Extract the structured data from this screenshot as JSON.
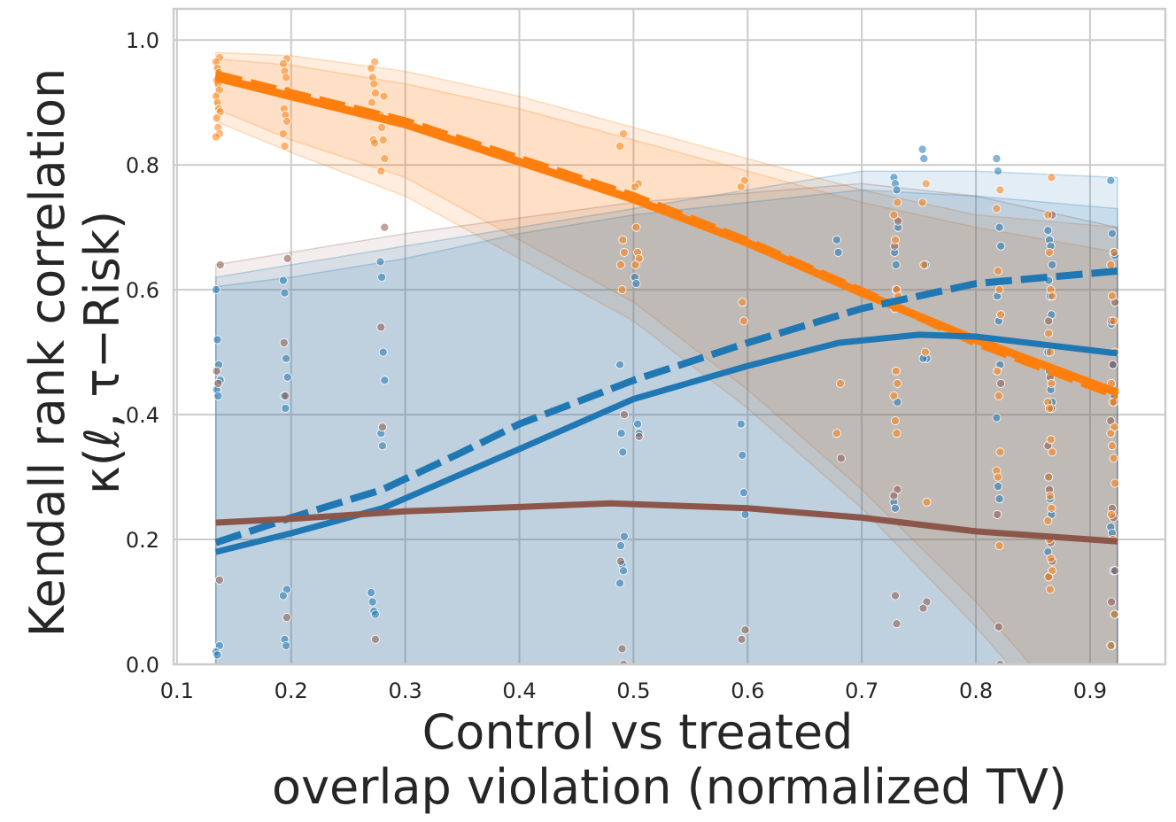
{
  "chart_data": {
    "type": "line",
    "title": "",
    "xlabel_lines": [
      "Control vs treated",
      "overlap violation (normalized TV)"
    ],
    "ylabel_lines": [
      "Kendall rank correlation",
      "κ(ℓ, τ−Risk)"
    ],
    "xlim": [
      0.097,
      0.966
    ],
    "ylim": [
      0.0,
      1.05
    ],
    "xticks": [
      0.1,
      0.2,
      0.3,
      0.4,
      0.5,
      0.6,
      0.7,
      0.8,
      0.9
    ],
    "yticks": [
      0.0,
      0.2,
      0.4,
      0.6,
      0.8,
      1.0
    ],
    "xtick_labels": [
      "0.1",
      "0.2",
      "0.3",
      "0.4",
      "0.5",
      "0.6",
      "0.7",
      "0.8",
      "0.9"
    ],
    "ytick_labels": [
      "0.0",
      "0.2",
      "0.4",
      "0.6",
      "0.8",
      "1.0"
    ],
    "grid": true,
    "colors": {
      "orange": "#ff7f0e",
      "blue": "#1f77b4",
      "brown": "#8c564b"
    },
    "bands": [
      {
        "color": "#ff7f0e",
        "opacity": 0.13,
        "x": [
          0.134,
          0.2,
          0.3,
          0.4,
          0.5,
          0.6,
          0.7,
          0.8,
          0.924
        ],
        "upper": [
          0.98,
          0.975,
          0.95,
          0.91,
          0.86,
          0.81,
          0.76,
          0.72,
          0.7
        ],
        "lower": [
          0.89,
          0.84,
          0.78,
          0.68,
          0.58,
          0.44,
          0.28,
          0.1,
          -0.16
        ]
      },
      {
        "color": "#ff7f0e",
        "opacity": 0.13,
        "x": [
          0.134,
          0.2,
          0.3,
          0.4,
          0.5,
          0.6,
          0.7,
          0.8,
          0.924
        ],
        "upper": [
          0.97,
          0.96,
          0.93,
          0.89,
          0.84,
          0.79,
          0.74,
          0.7,
          0.66
        ],
        "lower": [
          0.87,
          0.82,
          0.75,
          0.65,
          0.55,
          0.41,
          0.25,
          0.06,
          -0.2
        ]
      },
      {
        "color": "#8c564b",
        "opacity": 0.1,
        "x": [
          0.134,
          0.2,
          0.3,
          0.5,
          0.7,
          0.8,
          0.924
        ],
        "upper": [
          0.64,
          0.66,
          0.69,
          0.74,
          0.77,
          0.75,
          0.7
        ],
        "lower": [
          -0.2,
          -0.2,
          -0.2,
          -0.2,
          -0.2,
          -0.2,
          -0.2
        ]
      },
      {
        "color": "#1f77b4",
        "opacity": 0.13,
        "x": [
          0.134,
          0.2,
          0.3,
          0.4,
          0.5,
          0.6,
          0.7,
          0.8,
          0.924
        ],
        "upper": [
          0.62,
          0.64,
          0.67,
          0.7,
          0.73,
          0.76,
          0.79,
          0.79,
          0.78
        ],
        "lower": [
          -0.2,
          -0.2,
          -0.2,
          -0.2,
          -0.2,
          -0.2,
          -0.2,
          -0.2,
          -0.2
        ]
      },
      {
        "color": "#1f77b4",
        "opacity": 0.13,
        "x": [
          0.134,
          0.2,
          0.3,
          0.4,
          0.5,
          0.6,
          0.7,
          0.8,
          0.924
        ],
        "upper": [
          0.605,
          0.62,
          0.65,
          0.69,
          0.72,
          0.74,
          0.76,
          0.75,
          0.73
        ],
        "lower": [
          -0.2,
          -0.2,
          -0.2,
          -0.2,
          -0.2,
          -0.2,
          -0.2,
          -0.2,
          -0.2
        ]
      }
    ],
    "series": [
      {
        "color": "#ff7f0e",
        "style": "solid",
        "width": 9,
        "x": [
          0.134,
          0.2,
          0.3,
          0.4,
          0.5,
          0.6,
          0.7,
          0.8,
          0.924
        ],
        "y": [
          0.94,
          0.91,
          0.865,
          0.805,
          0.745,
          0.675,
          0.595,
          0.52,
          0.435
        ]
      },
      {
        "color": "#ff7f0e",
        "style": "dashed",
        "width": 9,
        "x": [
          0.134,
          0.2,
          0.3,
          0.4,
          0.5,
          0.6,
          0.7,
          0.8,
          0.924
        ],
        "y": [
          0.945,
          0.915,
          0.87,
          0.81,
          0.75,
          0.678,
          0.598,
          0.515,
          0.43
        ]
      },
      {
        "color": "#1f77b4",
        "style": "dashed",
        "width": 8,
        "x": [
          0.134,
          0.2,
          0.28,
          0.35,
          0.4,
          0.5,
          0.6,
          0.7,
          0.8,
          0.924
        ],
        "y": [
          0.195,
          0.235,
          0.28,
          0.34,
          0.385,
          0.455,
          0.515,
          0.57,
          0.61,
          0.63
        ]
      },
      {
        "color": "#1f77b4",
        "style": "solid",
        "width": 7,
        "x": [
          0.134,
          0.2,
          0.28,
          0.4,
          0.5,
          0.6,
          0.68,
          0.75,
          0.8,
          0.924
        ],
        "y": [
          0.18,
          0.21,
          0.25,
          0.345,
          0.425,
          0.478,
          0.515,
          0.528,
          0.525,
          0.498
        ]
      },
      {
        "color": "#8c564b",
        "style": "solid",
        "width": 7,
        "x": [
          0.134,
          0.2,
          0.3,
          0.4,
          0.48,
          0.6,
          0.7,
          0.8,
          0.924
        ],
        "y": [
          0.227,
          0.233,
          0.245,
          0.252,
          0.258,
          0.25,
          0.235,
          0.213,
          0.197
        ]
      }
    ],
    "scatter_columns": [
      {
        "x": 0.136,
        "orange": [
          0.972,
          0.965,
          0.955,
          0.948,
          0.94,
          0.935,
          0.93,
          0.92,
          0.91,
          0.9,
          0.89,
          0.885,
          0.875,
          0.86,
          0.85,
          0.845
        ],
        "blue": [
          0.6,
          0.52,
          0.48,
          0.455,
          0.44,
          0.43,
          0.03,
          0.02,
          0.015
        ],
        "brown": [
          0.64,
          0.47,
          0.45,
          0.135
        ]
      },
      {
        "x": 0.195,
        "orange": [
          0.97,
          0.962,
          0.95,
          0.94,
          0.92,
          0.89,
          0.88,
          0.87,
          0.85,
          0.83
        ],
        "blue": [
          0.615,
          0.595,
          0.49,
          0.46,
          0.43,
          0.41,
          0.12,
          0.11,
          0.04,
          0.03
        ],
        "brown": [
          0.65,
          0.515,
          0.43,
          0.075
        ]
      },
      {
        "x": 0.272,
        "orange": [
          0.965,
          0.955,
          0.94,
          0.93,
          0.915,
          0.9,
          0.84,
          0.835
        ],
        "blue": [
          0.115,
          0.1,
          0.085,
          0.08
        ],
        "brown": [
          0.04
        ]
      },
      {
        "x": 0.28,
        "orange": [
          0.91,
          0.88,
          0.86,
          0.84,
          0.81,
          0.79
        ],
        "blue": [
          0.645,
          0.62,
          0.5,
          0.455,
          0.37,
          0.35
        ],
        "brown": [
          0.7,
          0.54,
          0.38
        ]
      },
      {
        "x": 0.49,
        "orange": [
          0.85,
          0.83,
          0.75,
          0.68,
          0.66,
          0.64,
          0.6
        ],
        "blue": [
          0.48,
          0.37,
          0.34,
          0.205,
          0.19,
          0.16,
          0.15,
          0.13
        ],
        "brown": [
          0.4,
          0.165,
          0.025,
          0.0
        ]
      },
      {
        "x": 0.503,
        "orange": [
          0.77,
          0.765,
          0.7,
          0.66,
          0.65,
          0.64
        ],
        "blue": [
          0.62,
          0.61,
          0.385,
          0.37
        ],
        "brown": [
          0.365
        ]
      },
      {
        "x": 0.596,
        "orange": [
          0.775,
          0.765,
          0.58,
          0.55
        ],
        "blue": [
          0.385,
          0.335,
          0.275,
          0.24
        ],
        "brown": [
          0.055,
          0.04
        ]
      },
      {
        "x": 0.68,
        "orange": [
          0.45,
          0.37
        ],
        "blue": [
          0.68,
          0.66
        ],
        "brown": [
          0.33
        ]
      },
      {
        "x": 0.73,
        "orange": [
          0.74,
          0.72,
          0.68,
          0.6,
          0.59,
          0.57,
          0.47,
          0.45,
          0.43,
          0.39,
          0.37
        ],
        "blue": [
          0.78,
          0.77,
          0.76,
          0.7,
          0.66,
          0.64,
          0.42,
          0.26,
          0.25
        ],
        "brown": [
          0.71,
          0.67,
          0.6,
          0.28,
          0.27,
          0.11,
          0.065
        ]
      },
      {
        "x": 0.755,
        "orange": [
          0.77,
          0.74,
          0.64,
          0.5,
          0.26
        ],
        "blue": [
          0.825,
          0.81,
          0.64,
          0.49,
          0.49
        ],
        "brown": [
          0.1,
          0.09
        ]
      },
      {
        "x": 0.82,
        "orange": [
          0.76,
          0.73,
          0.63,
          0.6,
          0.56,
          0.47,
          0.43,
          0.34,
          0.31,
          0.3,
          0.19
        ],
        "blue": [
          0.81,
          0.79,
          0.7,
          0.67,
          0.59,
          0.55,
          0.48,
          0.395,
          0.285,
          0.265
        ],
        "brown": [
          0.45,
          0.24,
          0.06,
          0.0
        ]
      },
      {
        "x": 0.865,
        "orange": [
          0.78,
          0.72,
          0.66,
          0.6,
          0.59,
          0.53,
          0.5,
          0.45,
          0.42,
          0.41,
          0.36,
          0.34,
          0.3,
          0.27,
          0.25,
          0.23,
          0.2,
          0.17,
          0.15,
          0.14,
          0.12
        ],
        "blue": [
          0.695,
          0.68,
          0.67,
          0.64,
          0.615,
          0.59,
          0.56,
          0.5,
          0.47,
          0.44,
          0.42,
          0.3,
          0.265,
          0.24,
          0.18
        ],
        "brown": [
          0.72,
          0.55,
          0.46,
          0.41,
          0.35,
          0.28,
          0.195,
          0.165,
          0.14
        ]
      },
      {
        "x": 0.92,
        "orange": [
          0.66,
          0.64,
          0.59,
          0.55,
          0.5,
          0.45,
          0.42,
          0.38,
          0.37,
          0.35,
          0.33,
          0.29,
          0.24,
          0.2,
          0.08,
          0.03
        ],
        "blue": [
          0.775,
          0.69,
          0.66,
          0.655,
          0.545,
          0.48,
          0.43,
          0.22,
          0.21,
          0.15,
          0.08,
          0.03
        ],
        "brown": [
          0.58,
          0.55,
          0.48,
          0.42,
          0.39,
          0.25,
          0.235,
          0.15,
          0.1
        ]
      }
    ]
  }
}
